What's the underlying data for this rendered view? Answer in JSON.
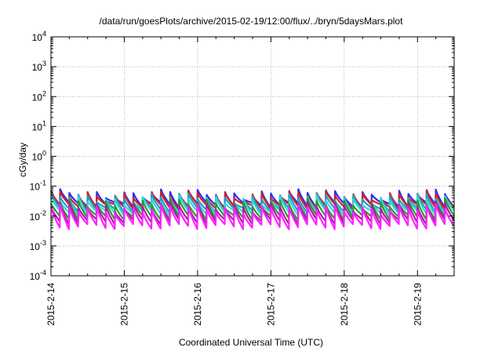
{
  "chart_data": {
    "type": "line",
    "title": "/data/run/goesPlots/archive/2015-02-19/12:00/flux/../bryn/5daysMars.plot",
    "xlabel": "Coordinated Universal Time (UTC)",
    "ylabel": "cGy/day",
    "yscale": "log",
    "ylim": [
      0.0001,
      10000
    ],
    "y_ticks": [
      {
        "base": "10",
        "exp": "-4"
      },
      {
        "base": "10",
        "exp": "-3"
      },
      {
        "base": "10",
        "exp": "-2"
      },
      {
        "base": "10",
        "exp": "-1"
      },
      {
        "base": "10",
        "exp": "0"
      },
      {
        "base": "10",
        "exp": "1"
      },
      {
        "base": "10",
        "exp": "2"
      },
      {
        "base": "10",
        "exp": "3"
      },
      {
        "base": "10",
        "exp": "4"
      }
    ],
    "xlim": [
      "2015-02-14",
      "2015-02-19 12:00"
    ],
    "x_ticks": [
      "2015-2-14",
      "2015-2-15",
      "2015-2-16",
      "2015-2-17",
      "2015-2-18",
      "2015-2-19"
    ],
    "grid": true,
    "sawtooth_period_hours": 3,
    "series": [
      {
        "color": "#2b2bff",
        "peak": 0.058,
        "trough": 0.024
      },
      {
        "color": "#d62020",
        "peak": 0.052,
        "trough": 0.021
      },
      {
        "color": "#1e9ec8",
        "peak": 0.043,
        "trough": 0.016
      },
      {
        "color": "#33d6d6",
        "peak": 0.036,
        "trough": 0.013
      },
      {
        "color": "#2a9a2a",
        "peak": 0.028,
        "trough": 0.009
      },
      {
        "color": "#b01aa8",
        "peak": 0.022,
        "trough": 0.0065
      },
      {
        "color": "#ff22ff",
        "peak": 0.018,
        "trough": 0.0045
      }
    ]
  }
}
